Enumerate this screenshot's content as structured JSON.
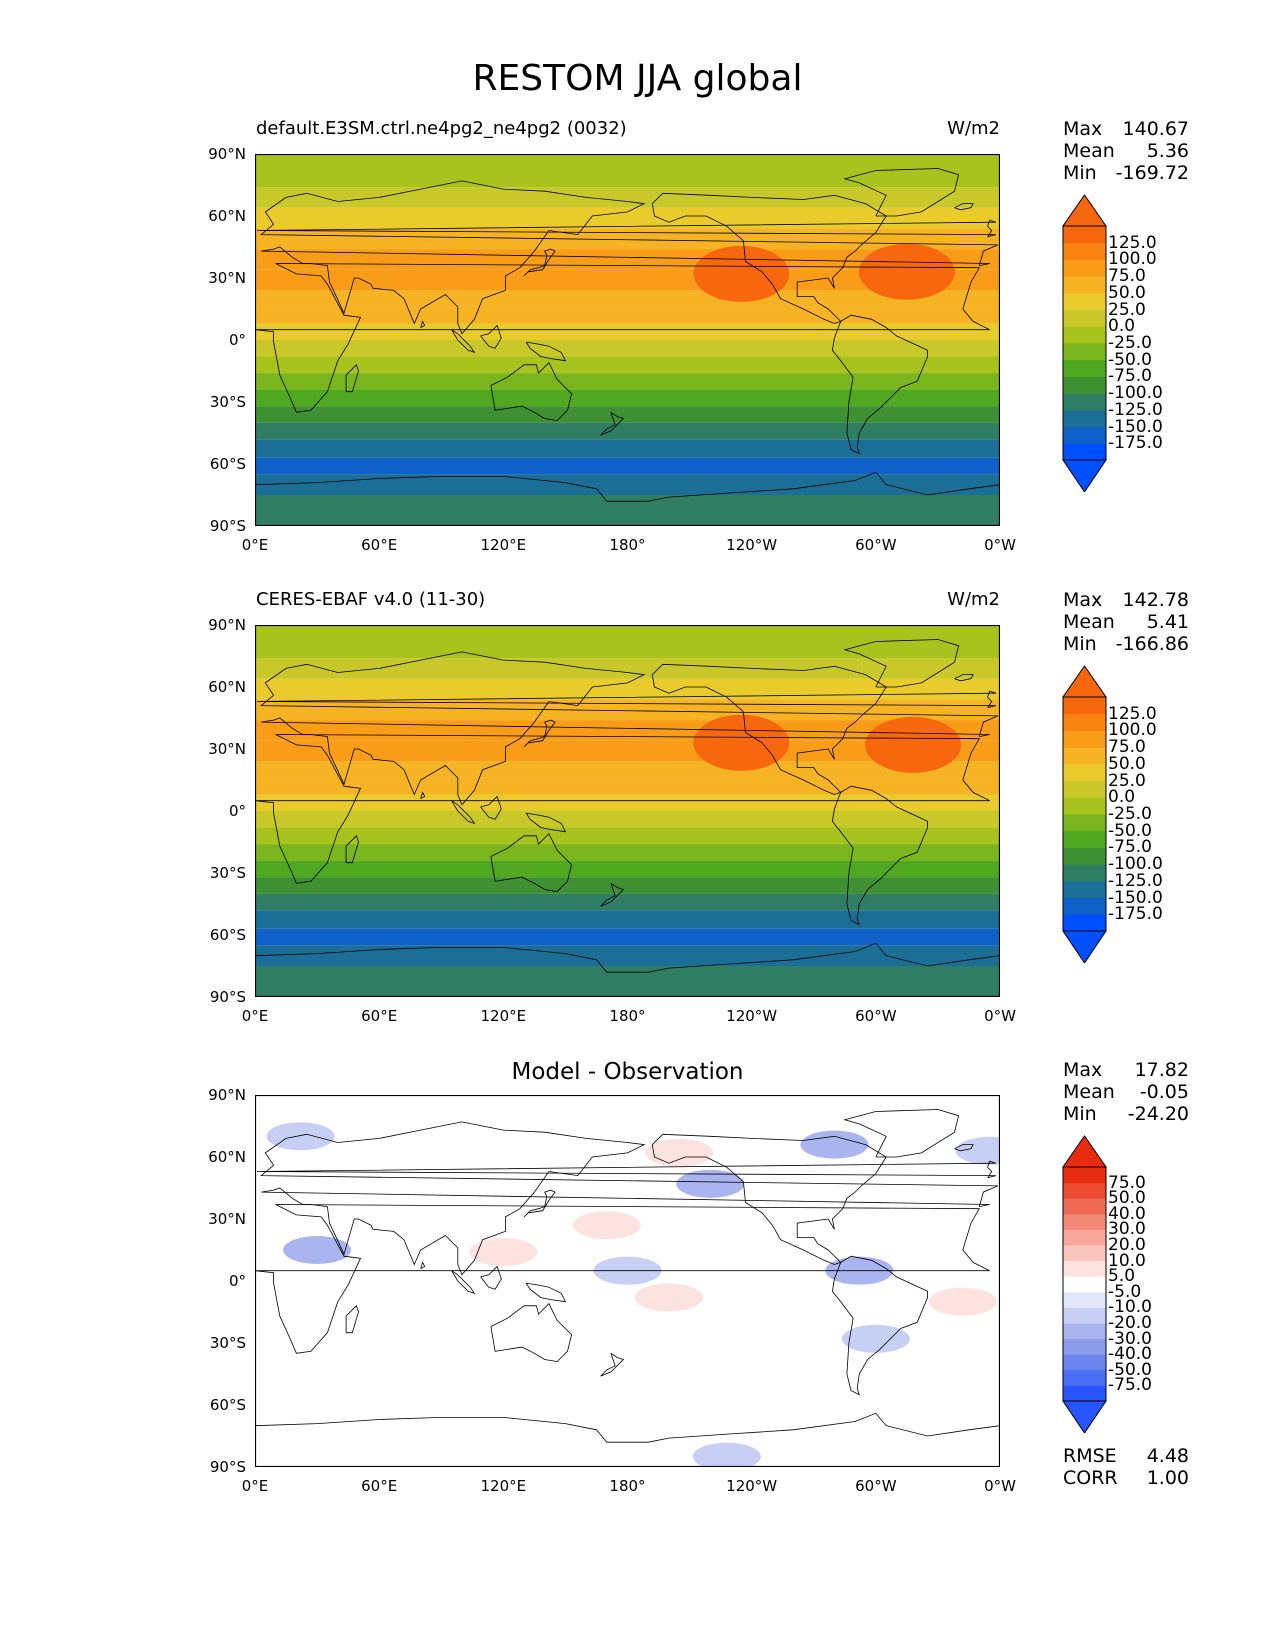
{
  "figure_title": "RESTOM JJA global",
  "axes": {
    "lat_ticks": [
      "90°N",
      "60°N",
      "30°N",
      "0°",
      "30°S",
      "60°S",
      "90°S"
    ],
    "lon_ticks": [
      "0°E",
      "60°E",
      "120°E",
      "180°",
      "120°W",
      "60°W",
      "0°W"
    ]
  },
  "panels": [
    {
      "left_title": "default.E3SM.ctrl.ne4pg2_ne4pg2 (0032)",
      "right_title": "W/m2",
      "center_title": "",
      "stats": [
        [
          "Max",
          "140.67"
        ],
        [
          "Mean",
          "5.36"
        ],
        [
          "Min",
          "-169.72"
        ]
      ],
      "colorbar_labels": [
        "125.0",
        "100.0",
        "75.0",
        "50.0",
        "25.0",
        "0.0",
        "-25.0",
        "-50.0",
        "-75.0",
        "-100.0",
        "-125.0",
        "-150.0",
        "-175.0"
      ],
      "extra_stats": []
    },
    {
      "left_title": "CERES-EBAF v4.0 (11-30)",
      "right_title": "W/m2",
      "center_title": "",
      "stats": [
        [
          "Max",
          "142.78"
        ],
        [
          "Mean",
          "5.41"
        ],
        [
          "Min",
          "-166.86"
        ]
      ],
      "colorbar_labels": [
        "125.0",
        "100.0",
        "75.0",
        "50.0",
        "25.0",
        "0.0",
        "-25.0",
        "-50.0",
        "-75.0",
        "-100.0",
        "-125.0",
        "-150.0",
        "-175.0"
      ],
      "extra_stats": []
    },
    {
      "left_title": "",
      "right_title": "",
      "center_title": "Model - Observation",
      "stats": [
        [
          "Max",
          "17.82"
        ],
        [
          "Mean",
          "-0.05"
        ],
        [
          "Min",
          "-24.20"
        ]
      ],
      "colorbar_labels": [
        "75.0",
        "50.0",
        "40.0",
        "30.0",
        "20.0",
        "10.0",
        "5.0",
        "-5.0",
        "-10.0",
        "-20.0",
        "-30.0",
        "-40.0",
        "-50.0",
        "-75.0"
      ],
      "extra_stats": [
        [
          "RMSE",
          "4.48"
        ],
        [
          "CORR",
          "1.00"
        ]
      ]
    }
  ],
  "colormaps": {
    "field": [
      "#0050ff",
      "#0f60c8",
      "#1b6f96",
      "#2f7d62",
      "#3f8f33",
      "#4fa820",
      "#7ab51e",
      "#a8c21e",
      "#c9c82a",
      "#e9cc2c",
      "#f6b323",
      "#f99d18",
      "#f98412",
      "#f7670d",
      "#f54908",
      "#f02a05"
    ],
    "diff": [
      "#0035ff",
      "#2755ff",
      "#4a6ef6",
      "#6a86ee",
      "#8b9cea",
      "#aab4ee",
      "#c8cff5",
      "#e2e6fb",
      "#ffffff",
      "#fde3df",
      "#f9c6bd",
      "#f6a79a",
      "#f28876",
      "#ef6a55",
      "#ec4a32",
      "#e82c10"
    ]
  },
  "chart_data": [
    {
      "type": "heatmap",
      "title": "default.E3SM.ctrl.ne4pg2_ne4pg2 (0032)",
      "units": "W/m2",
      "xlabel": "",
      "ylabel": "",
      "lon_range": [
        0,
        360
      ],
      "lat_range": [
        -90,
        90
      ],
      "levels": [
        -175,
        -150,
        -125,
        -100,
        -75,
        -50,
        -25,
        0,
        25,
        50,
        75,
        100,
        125
      ],
      "lat_bands": [
        -90,
        -75,
        -65,
        -57,
        -48,
        -40,
        -32,
        -24,
        -16,
        -8,
        0,
        8,
        16,
        24,
        34,
        44,
        54,
        64,
        74,
        90
      ],
      "band_values": [
        -120,
        -140,
        -170,
        -150,
        -120,
        -100,
        -70,
        -45,
        -15,
        15,
        35,
        50,
        70,
        85,
        90,
        70,
        40,
        10,
        -15
      ],
      "hotspots": [
        {
          "lon": 235,
          "lat": 32,
          "value": 130
        },
        {
          "lon": 315,
          "lat": 33,
          "value": 128
        }
      ],
      "stats": {
        "max": 140.67,
        "mean": 5.36,
        "min": -169.72
      }
    },
    {
      "type": "heatmap",
      "title": "CERES-EBAF v4.0 (11-30)",
      "units": "W/m2",
      "xlabel": "",
      "ylabel": "",
      "lon_range": [
        0,
        360
      ],
      "lat_range": [
        -90,
        90
      ],
      "levels": [
        -175,
        -150,
        -125,
        -100,
        -75,
        -50,
        -25,
        0,
        25,
        50,
        75,
        100,
        125
      ],
      "lat_bands": [
        -90,
        -75,
        -65,
        -57,
        -48,
        -40,
        -32,
        -24,
        -16,
        -8,
        0,
        8,
        16,
        24,
        34,
        44,
        54,
        64,
        74,
        90
      ],
      "band_values": [
        -120,
        -145,
        -172,
        -150,
        -118,
        -98,
        -68,
        -42,
        -12,
        18,
        38,
        55,
        72,
        88,
        92,
        72,
        42,
        12,
        -12
      ],
      "hotspots": [
        {
          "lon": 235,
          "lat": 33,
          "value": 132
        },
        {
          "lon": 318,
          "lat": 32,
          "value": 130
        }
      ],
      "stats": {
        "max": 142.78,
        "mean": 5.41,
        "min": -166.86
      }
    },
    {
      "type": "heatmap",
      "title": "Model - Observation",
      "units": "W/m2",
      "xlabel": "",
      "ylabel": "",
      "lon_range": [
        0,
        360
      ],
      "lat_range": [
        -90,
        90
      ],
      "levels": [
        -75,
        -50,
        -40,
        -30,
        -20,
        -10,
        -5,
        5,
        10,
        20,
        30,
        40,
        50,
        75
      ],
      "anomalies": [
        {
          "lon": 22,
          "lat": 70,
          "value": -8
        },
        {
          "lon": 30,
          "lat": 15,
          "value": -15
        },
        {
          "lon": 120,
          "lat": 14,
          "value": 10
        },
        {
          "lon": 170,
          "lat": 27,
          "value": 12
        },
        {
          "lon": 205,
          "lat": 62,
          "value": 10
        },
        {
          "lon": 220,
          "lat": 47,
          "value": -12
        },
        {
          "lon": 280,
          "lat": 66,
          "value": -14
        },
        {
          "lon": 355,
          "lat": 63,
          "value": -8
        },
        {
          "lon": 292,
          "lat": 5,
          "value": -12
        },
        {
          "lon": 180,
          "lat": 5,
          "value": -8
        },
        {
          "lon": 200,
          "lat": -8,
          "value": 10
        },
        {
          "lon": 300,
          "lat": -28,
          "value": -8
        },
        {
          "lon": 342,
          "lat": -10,
          "value": 10
        },
        {
          "lon": 228,
          "lat": -85,
          "value": -8
        }
      ],
      "stats": {
        "max": 17.82,
        "mean": -0.05,
        "min": -24.2,
        "rmse": 4.48,
        "corr": 1.0
      }
    }
  ]
}
